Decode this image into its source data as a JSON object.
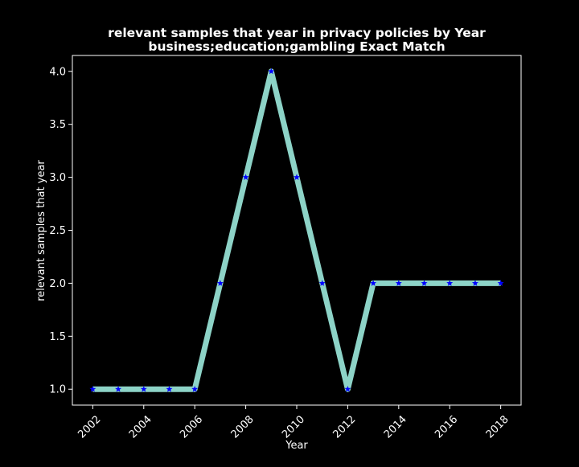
{
  "chart_data": {
    "type": "line",
    "title_line1": "relevant samples that year in privacy policies by Year",
    "title_line2": "business;education;gambling Exact Match",
    "xlabel": "Year",
    "ylabel": "relevant samples that year",
    "x": [
      2002,
      2003,
      2004,
      2005,
      2006,
      2007,
      2008,
      2009,
      2010,
      2011,
      2012,
      2013,
      2014,
      2015,
      2016,
      2017,
      2018
    ],
    "series": [
      {
        "values": [
          1,
          1,
          1,
          1,
          1,
          2,
          3,
          4,
          3,
          2,
          1,
          2,
          2,
          2,
          2,
          2,
          2
        ],
        "line_color": "#8dd3c7",
        "marker": "star",
        "marker_color": "#0000ff"
      }
    ],
    "xlim": [
      2001.2,
      2018.8
    ],
    "ylim": [
      0.85,
      4.15
    ],
    "xticks": [
      2002,
      2004,
      2006,
      2008,
      2010,
      2012,
      2014,
      2016,
      2018
    ],
    "yticks": [
      "1.0",
      "1.5",
      "2.0",
      "2.5",
      "3.0",
      "3.5",
      "4.0"
    ],
    "grid": false,
    "background": "#000000",
    "axis_color": "#ffffff"
  }
}
